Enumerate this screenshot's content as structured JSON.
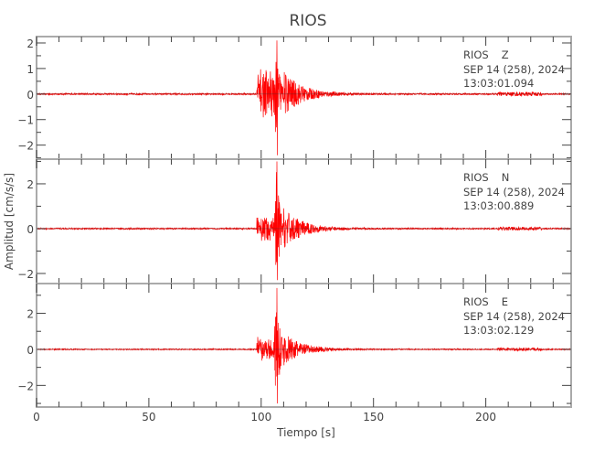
{
  "chart_data": {
    "type": "line",
    "title": "RIOS",
    "xlabel": "Tiempo [s]",
    "ylabel": "Amplitud [cm/s/s]",
    "xlim": [
      0,
      238
    ],
    "xticks": [
      0,
      50,
      100,
      150,
      200
    ],
    "grid": false,
    "line_color": "#ff0000",
    "frame_color": "#aaaaaa",
    "panels": [
      {
        "component": "Z",
        "station": "RIOS",
        "date": "SEP 14 (258), 2024",
        "time": "13:03:01.094",
        "ylim": [
          -2.55,
          2.25
        ],
        "yticks": [
          -2,
          -1,
          0,
          1,
          2
        ],
        "onset_s": 98,
        "peak_s": 107,
        "peak_max": 2.1,
        "peak_min": -2.4,
        "pre_event_amplitude": 1.0,
        "coda_end_s": 140
      },
      {
        "component": "N",
        "station": "RIOS",
        "date": "SEP 14 (258), 2024",
        "time": "13:03:00.889",
        "ylim": [
          -2.45,
          3.1
        ],
        "yticks": [
          -2,
          0,
          2
        ],
        "onset_s": 98,
        "peak_s": 107,
        "peak_max": 3.0,
        "peak_min": -2.3,
        "pre_event_amplitude": 0.6,
        "coda_end_s": 135
      },
      {
        "component": "E",
        "station": "RIOS",
        "date": "SEP 14 (258), 2024",
        "time": "13:03:02.129",
        "ylim": [
          -3.2,
          3.65
        ],
        "yticks": [
          -2,
          0,
          2
        ],
        "onset_s": 98,
        "peak_s": 107,
        "peak_max": 3.4,
        "peak_min": -3.0,
        "pre_event_amplitude": 0.7,
        "coda_end_s": 135
      }
    ]
  }
}
